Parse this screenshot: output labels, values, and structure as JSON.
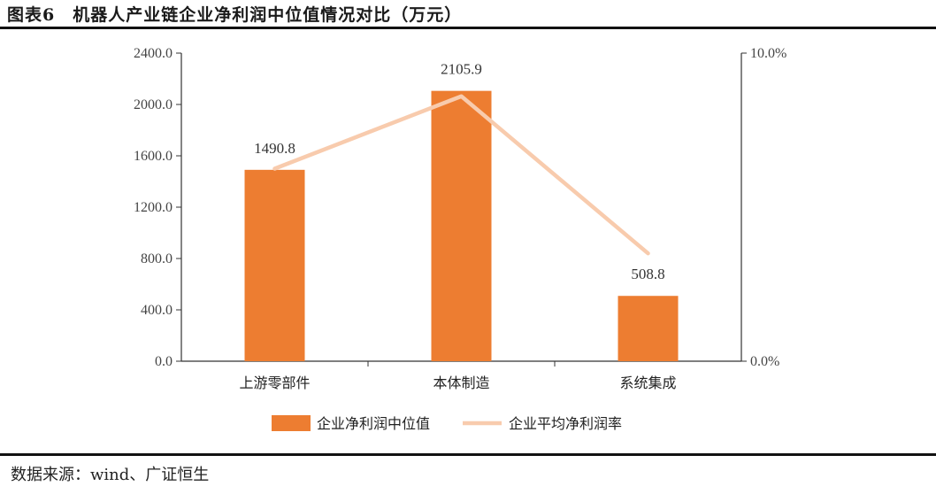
{
  "header": {
    "title": "图表6　机器人产业链企业净利润中位值情况对比（万元）"
  },
  "footer": {
    "source": "数据来源：wind、广证恒生"
  },
  "colors": {
    "bar": "#ED7D31",
    "line": "#F8CBAD",
    "axis": "#333333"
  },
  "chart_data": {
    "type": "bar",
    "title": "机器人产业链企业净利润中位值情况对比（万元）",
    "categories": [
      "上游零部件",
      "本体制造",
      "系统集成"
    ],
    "series": [
      {
        "name": "企业净利润中位值",
        "type": "bar",
        "axis": "left",
        "values": [
          1490.8,
          2105.9,
          508.8
        ]
      },
      {
        "name": "企业平均净利润率",
        "type": "line",
        "axis": "right",
        "values": [
          0.0625,
          0.086,
          0.035
        ]
      }
    ],
    "data_labels": [
      "1490.8",
      "2105.9",
      "508.8"
    ],
    "y_left": {
      "lim": [
        0,
        2400
      ],
      "ticks": [
        "0.0",
        "400.0",
        "800.0",
        "1200.0",
        "1600.0",
        "2000.0",
        "2400.0"
      ]
    },
    "y_right": {
      "lim": [
        0,
        0.1
      ],
      "ticks": [
        "0.0%",
        "10.0%"
      ]
    },
    "legend": {
      "position": "bottom",
      "entries": [
        "企业净利润中位值",
        "企业平均净利润率"
      ]
    },
    "grid": false
  }
}
